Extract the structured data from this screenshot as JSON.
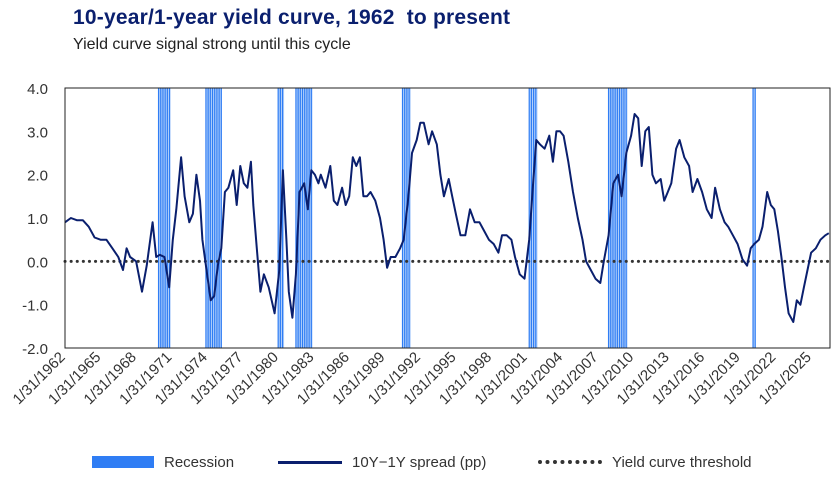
{
  "header": {
    "title": "10-year/1-year yield curve, 1962  to present",
    "subtitle": "Yield curve signal strong until this cycle"
  },
  "legend": {
    "recession": "Recession",
    "spread": "10Y−1Y spread (pp)",
    "threshold": "Yield curve threshold"
  },
  "colors": {
    "recession": "#2f7df4",
    "spread": "#0a1f6e",
    "threshold": "#333333",
    "title": "#0a1f6e"
  },
  "chart_data": {
    "type": "line",
    "xlabel": "",
    "ylabel": "",
    "ylim": [
      -2.0,
      4.0
    ],
    "yticks": [
      "4.0",
      "3.0",
      "2.0",
      "1.0",
      "0.0",
      "-1.0",
      "-2.0"
    ],
    "xlim": [
      1962.0,
      2026.6
    ],
    "xticks": [
      "1/31/1962",
      "1/31/1965",
      "1/31/1968",
      "1/31/1971",
      "1/31/1974",
      "1/31/1977",
      "1/31/1980",
      "1/31/1983",
      "1/31/1986",
      "1/31/1989",
      "1/31/1992",
      "1/31/1995",
      "1/31/1998",
      "1/31/2001",
      "1/31/2004",
      "1/31/2007",
      "1/31/2010",
      "1/31/2013",
      "1/31/2016",
      "1/31/2019",
      "1/31/2022",
      "1/31/2025"
    ],
    "threshold": 0,
    "recessions": [
      [
        1969.9,
        1970.9
      ],
      [
        1973.9,
        1975.2
      ],
      [
        1980.0,
        1980.5
      ],
      [
        1981.5,
        1982.9
      ],
      [
        1990.5,
        1991.2
      ],
      [
        2001.2,
        2001.9
      ],
      [
        2007.9,
        2009.5
      ],
      [
        2020.1,
        2020.3
      ]
    ],
    "series": [
      {
        "name": "10Y−1Y spread (pp)",
        "points": [
          [
            1962.0,
            0.9
          ],
          [
            1962.5,
            1.0
          ],
          [
            1963.0,
            0.95
          ],
          [
            1963.5,
            0.95
          ],
          [
            1964.0,
            0.8
          ],
          [
            1964.5,
            0.55
          ],
          [
            1965.0,
            0.5
          ],
          [
            1965.5,
            0.5
          ],
          [
            1966.0,
            0.3
          ],
          [
            1966.5,
            0.1
          ],
          [
            1966.9,
            -0.2
          ],
          [
            1967.2,
            0.3
          ],
          [
            1967.5,
            0.1
          ],
          [
            1968.0,
            0.0
          ],
          [
            1968.5,
            -0.7
          ],
          [
            1968.9,
            -0.1
          ],
          [
            1969.4,
            0.9
          ],
          [
            1969.7,
            0.1
          ],
          [
            1970.0,
            0.15
          ],
          [
            1970.4,
            0.1
          ],
          [
            1970.8,
            -0.6
          ],
          [
            1971.1,
            0.5
          ],
          [
            1971.4,
            1.2
          ],
          [
            1971.8,
            2.4
          ],
          [
            1972.1,
            1.5
          ],
          [
            1972.5,
            0.9
          ],
          [
            1972.8,
            1.1
          ],
          [
            1973.1,
            2.0
          ],
          [
            1973.4,
            1.4
          ],
          [
            1973.6,
            0.5
          ],
          [
            1974.0,
            -0.3
          ],
          [
            1974.3,
            -0.9
          ],
          [
            1974.6,
            -0.8
          ],
          [
            1974.9,
            -0.1
          ],
          [
            1975.2,
            0.3
          ],
          [
            1975.5,
            1.6
          ],
          [
            1975.8,
            1.7
          ],
          [
            1976.2,
            2.1
          ],
          [
            1976.5,
            1.3
          ],
          [
            1976.8,
            2.2
          ],
          [
            1977.1,
            1.8
          ],
          [
            1977.4,
            1.7
          ],
          [
            1977.7,
            2.3
          ],
          [
            1977.9,
            1.3
          ],
          [
            1978.2,
            0.3
          ],
          [
            1978.5,
            -0.7
          ],
          [
            1978.8,
            -0.3
          ],
          [
            1979.2,
            -0.6
          ],
          [
            1979.7,
            -1.2
          ],
          [
            1980.1,
            -0.2
          ],
          [
            1980.4,
            2.1
          ],
          [
            1980.7,
            0.5
          ],
          [
            1980.9,
            -0.7
          ],
          [
            1981.2,
            -1.3
          ],
          [
            1981.5,
            -0.3
          ],
          [
            1981.8,
            1.6
          ],
          [
            1982.2,
            1.8
          ],
          [
            1982.5,
            1.2
          ],
          [
            1982.8,
            2.1
          ],
          [
            1983.1,
            2.0
          ],
          [
            1983.4,
            1.8
          ],
          [
            1983.6,
            2.0
          ],
          [
            1984.0,
            1.7
          ],
          [
            1984.4,
            2.2
          ],
          [
            1984.7,
            1.4
          ],
          [
            1985.0,
            1.3
          ],
          [
            1985.4,
            1.7
          ],
          [
            1985.7,
            1.3
          ],
          [
            1986.0,
            1.5
          ],
          [
            1986.3,
            2.4
          ],
          [
            1986.6,
            2.2
          ],
          [
            1986.9,
            2.4
          ],
          [
            1987.2,
            1.5
          ],
          [
            1987.5,
            1.5
          ],
          [
            1987.8,
            1.6
          ],
          [
            1988.2,
            1.4
          ],
          [
            1988.6,
            1.0
          ],
          [
            1988.9,
            0.5
          ],
          [
            1989.2,
            -0.15
          ],
          [
            1989.5,
            0.1
          ],
          [
            1989.9,
            0.1
          ],
          [
            1990.3,
            0.3
          ],
          [
            1990.6,
            0.5
          ],
          [
            1991.0,
            1.5
          ],
          [
            1991.3,
            2.5
          ],
          [
            1991.7,
            2.8
          ],
          [
            1992.0,
            3.2
          ],
          [
            1992.3,
            3.2
          ],
          [
            1992.7,
            2.7
          ],
          [
            1993.0,
            3.0
          ],
          [
            1993.4,
            2.7
          ],
          [
            1993.7,
            2.0
          ],
          [
            1994.0,
            1.5
          ],
          [
            1994.4,
            1.9
          ],
          [
            1994.7,
            1.5
          ],
          [
            1995.0,
            1.1
          ],
          [
            1995.4,
            0.6
          ],
          [
            1995.8,
            0.6
          ],
          [
            1996.2,
            1.2
          ],
          [
            1996.6,
            0.9
          ],
          [
            1997.0,
            0.9
          ],
          [
            1997.4,
            0.7
          ],
          [
            1997.8,
            0.5
          ],
          [
            1998.2,
            0.4
          ],
          [
            1998.6,
            0.2
          ],
          [
            1998.9,
            0.6
          ],
          [
            1999.3,
            0.6
          ],
          [
            1999.7,
            0.5
          ],
          [
            2000.0,
            0.1
          ],
          [
            2000.4,
            -0.3
          ],
          [
            2000.8,
            -0.4
          ],
          [
            2001.2,
            0.5
          ],
          [
            2001.5,
            1.7
          ],
          [
            2001.8,
            2.8
          ],
          [
            2002.1,
            2.7
          ],
          [
            2002.5,
            2.6
          ],
          [
            2002.9,
            2.9
          ],
          [
            2003.2,
            2.3
          ],
          [
            2003.5,
            3.0
          ],
          [
            2003.8,
            3.0
          ],
          [
            2004.1,
            2.9
          ],
          [
            2004.5,
            2.3
          ],
          [
            2004.9,
            1.6
          ],
          [
            2005.3,
            1.0
          ],
          [
            2005.7,
            0.5
          ],
          [
            2006.0,
            0.0
          ],
          [
            2006.4,
            -0.2
          ],
          [
            2006.8,
            -0.4
          ],
          [
            2007.2,
            -0.5
          ],
          [
            2007.5,
            0.0
          ],
          [
            2007.9,
            0.6
          ],
          [
            2008.3,
            1.8
          ],
          [
            2008.7,
            2.0
          ],
          [
            2009.0,
            1.5
          ],
          [
            2009.4,
            2.5
          ],
          [
            2009.8,
            2.9
          ],
          [
            2010.1,
            3.4
          ],
          [
            2010.4,
            3.3
          ],
          [
            2010.7,
            2.2
          ],
          [
            2011.0,
            3.0
          ],
          [
            2011.3,
            3.1
          ],
          [
            2011.6,
            2.0
          ],
          [
            2011.9,
            1.8
          ],
          [
            2012.3,
            1.9
          ],
          [
            2012.6,
            1.4
          ],
          [
            2012.9,
            1.6
          ],
          [
            2013.2,
            1.8
          ],
          [
            2013.6,
            2.6
          ],
          [
            2013.9,
            2.8
          ],
          [
            2014.3,
            2.4
          ],
          [
            2014.7,
            2.2
          ],
          [
            2015.0,
            1.6
          ],
          [
            2015.4,
            1.9
          ],
          [
            2015.8,
            1.6
          ],
          [
            2016.2,
            1.2
          ],
          [
            2016.6,
            1.0
          ],
          [
            2016.9,
            1.7
          ],
          [
            2017.3,
            1.2
          ],
          [
            2017.7,
            0.9
          ],
          [
            2018.0,
            0.8
          ],
          [
            2018.4,
            0.6
          ],
          [
            2018.8,
            0.4
          ],
          [
            2019.2,
            0.05
          ],
          [
            2019.6,
            -0.1
          ],
          [
            2019.9,
            0.3
          ],
          [
            2020.2,
            0.4
          ],
          [
            2020.6,
            0.5
          ],
          [
            2020.9,
            0.8
          ],
          [
            2021.3,
            1.6
          ],
          [
            2021.6,
            1.3
          ],
          [
            2021.9,
            1.2
          ],
          [
            2022.2,
            0.7
          ],
          [
            2022.5,
            0.1
          ],
          [
            2022.8,
            -0.6
          ],
          [
            2023.1,
            -1.2
          ],
          [
            2023.5,
            -1.4
          ],
          [
            2023.8,
            -0.9
          ],
          [
            2024.1,
            -1.0
          ],
          [
            2024.4,
            -0.6
          ],
          [
            2024.7,
            -0.2
          ],
          [
            2025.0,
            0.2
          ],
          [
            2025.4,
            0.3
          ],
          [
            2025.8,
            0.5
          ],
          [
            2026.2,
            0.6
          ],
          [
            2026.5,
            0.65
          ]
        ]
      }
    ]
  }
}
